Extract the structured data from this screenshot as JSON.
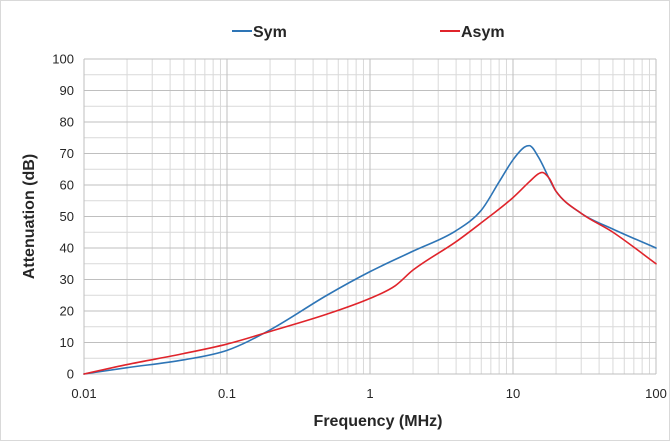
{
  "chart_data": {
    "type": "line",
    "xscale": "log",
    "xlim": [
      0.01,
      100
    ],
    "ylim": [
      0,
      100
    ],
    "xlabel": "Frequency (MHz)",
    "ylabel": "Attenuation (dB)",
    "xticks": [
      "0.01",
      "0.1",
      "1",
      "10",
      "100"
    ],
    "yticks": [
      "0",
      "10",
      "20",
      "30",
      "40",
      "50",
      "60",
      "70",
      "80",
      "90",
      "100"
    ],
    "grid": true,
    "legend_position": "top",
    "series": [
      {
        "name": "Sym",
        "color": "#2e75b6",
        "x": [
          0.01,
          0.02,
          0.05,
          0.1,
          0.2,
          0.5,
          1,
          2,
          4,
          6,
          8,
          10,
          12,
          13,
          15,
          20,
          30,
          50,
          100
        ],
        "y": [
          0,
          2,
          4.5,
          7.5,
          14,
          25,
          32.5,
          39,
          45.5,
          52,
          61,
          68,
          72,
          72.5,
          69,
          58,
          51,
          46,
          40
        ]
      },
      {
        "name": "Asym",
        "color": "#e0242b",
        "x": [
          0.01,
          0.02,
          0.05,
          0.1,
          0.2,
          0.5,
          1,
          1.5,
          2,
          4,
          6,
          10,
          13,
          15,
          16,
          18,
          20,
          30,
          50,
          100
        ],
        "y": [
          0,
          3,
          6.5,
          9.5,
          13.5,
          19,
          24,
          28,
          33,
          42,
          48,
          56,
          61,
          63.5,
          64,
          62,
          58,
          51,
          45,
          35
        ]
      }
    ]
  }
}
